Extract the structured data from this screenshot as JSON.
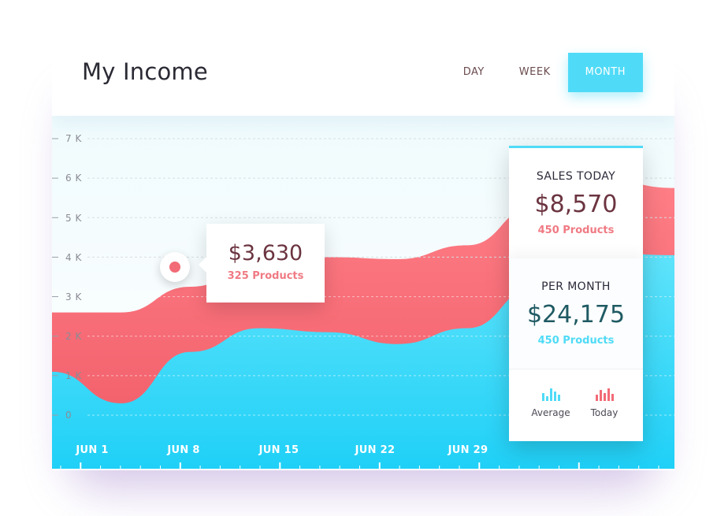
{
  "header": {
    "title": "My Income",
    "tabs": [
      {
        "label": "DAY",
        "active": false
      },
      {
        "label": "WEEK",
        "active": false
      },
      {
        "label": "MONTH",
        "active": true
      }
    ]
  },
  "tooltip": {
    "amount": "$3,630",
    "sub": "325 Products"
  },
  "summary": {
    "sales_today": {
      "label": "SALES TODAY",
      "value": "$8,570",
      "sub": "450 Products"
    },
    "per_month": {
      "label": "PER MONTH",
      "value": "$24,175",
      "sub": "450 Products"
    },
    "legend": [
      {
        "label": "Average",
        "icon": "bar-chart-icon",
        "color": "#4fdbf7"
      },
      {
        "label": "Today",
        "icon": "bar-chart-icon",
        "color": "#f26b76"
      }
    ]
  },
  "chart_data": {
    "type": "area",
    "y_ticks": [
      "7 K",
      "6 K",
      "5 K",
      "4 K",
      "3 K",
      "2 K",
      "1 K",
      "0"
    ],
    "x_ticks": [
      "JUN 1",
      "JUN 8",
      "JUN 15",
      "JUN 22",
      "JUN 29"
    ],
    "ylim": [
      0,
      7000
    ],
    "grid": true,
    "series": [
      {
        "color": "#f26b76",
        "values": [
          2600,
          2600,
          3250,
          3800,
          4000,
          3950,
          4300,
          5300,
          5950,
          5750
        ]
      },
      {
        "color": "#4fdbf7",
        "values": [
          1100,
          300,
          1600,
          2200,
          2100,
          1800,
          2200,
          3250,
          4100,
          4050
        ]
      }
    ]
  }
}
